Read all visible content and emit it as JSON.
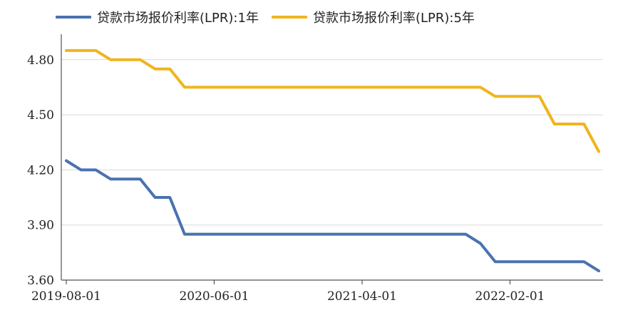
{
  "chart_data": {
    "type": "line",
    "title": "",
    "xlabel": "",
    "ylabel": "",
    "ylim": [
      3.6,
      4.9
    ],
    "y_ticks": [
      "4.80",
      "4.50",
      "4.20",
      "3.90",
      "3.60"
    ],
    "y_tick_values": [
      4.8,
      4.5,
      4.2,
      3.9,
      3.6
    ],
    "x_tick_labels": [
      "2019-08-01",
      "2020-06-01",
      "2021-04-01",
      "2022-02-01"
    ],
    "x_tick_index": [
      0,
      10,
      20,
      30
    ],
    "grid": "horizontal",
    "legend_position": "top",
    "x": [
      "2019-08",
      "2019-09",
      "2019-10",
      "2019-11",
      "2019-12",
      "2020-01",
      "2020-02",
      "2020-03",
      "2020-04",
      "2020-05",
      "2020-06",
      "2020-07",
      "2020-08",
      "2020-09",
      "2020-10",
      "2020-11",
      "2020-12",
      "2021-01",
      "2021-02",
      "2021-03",
      "2021-04",
      "2021-05",
      "2021-06",
      "2021-07",
      "2021-08",
      "2021-09",
      "2021-10",
      "2021-11",
      "2021-12",
      "2022-01",
      "2022-02",
      "2022-03",
      "2022-04",
      "2022-05",
      "2022-06",
      "2022-07",
      "2022-08"
    ],
    "series": [
      {
        "name": "贷款市场报价利率(LPR):1年",
        "color": "#4a72b0",
        "values": [
          4.25,
          4.2,
          4.2,
          4.15,
          4.15,
          4.15,
          4.05,
          4.05,
          3.85,
          3.85,
          3.85,
          3.85,
          3.85,
          3.85,
          3.85,
          3.85,
          3.85,
          3.85,
          3.85,
          3.85,
          3.85,
          3.85,
          3.85,
          3.85,
          3.85,
          3.85,
          3.85,
          3.85,
          3.8,
          3.7,
          3.7,
          3.7,
          3.7,
          3.7,
          3.7,
          3.7,
          3.65
        ]
      },
      {
        "name": "贷款市场报价利率(LPR):5年",
        "color": "#f0b41e",
        "values": [
          4.85,
          4.85,
          4.85,
          4.8,
          4.8,
          4.8,
          4.75,
          4.75,
          4.65,
          4.65,
          4.65,
          4.65,
          4.65,
          4.65,
          4.65,
          4.65,
          4.65,
          4.65,
          4.65,
          4.65,
          4.65,
          4.65,
          4.65,
          4.65,
          4.65,
          4.65,
          4.65,
          4.65,
          4.65,
          4.6,
          4.6,
          4.6,
          4.6,
          4.45,
          4.45,
          4.45,
          4.3
        ]
      }
    ]
  }
}
